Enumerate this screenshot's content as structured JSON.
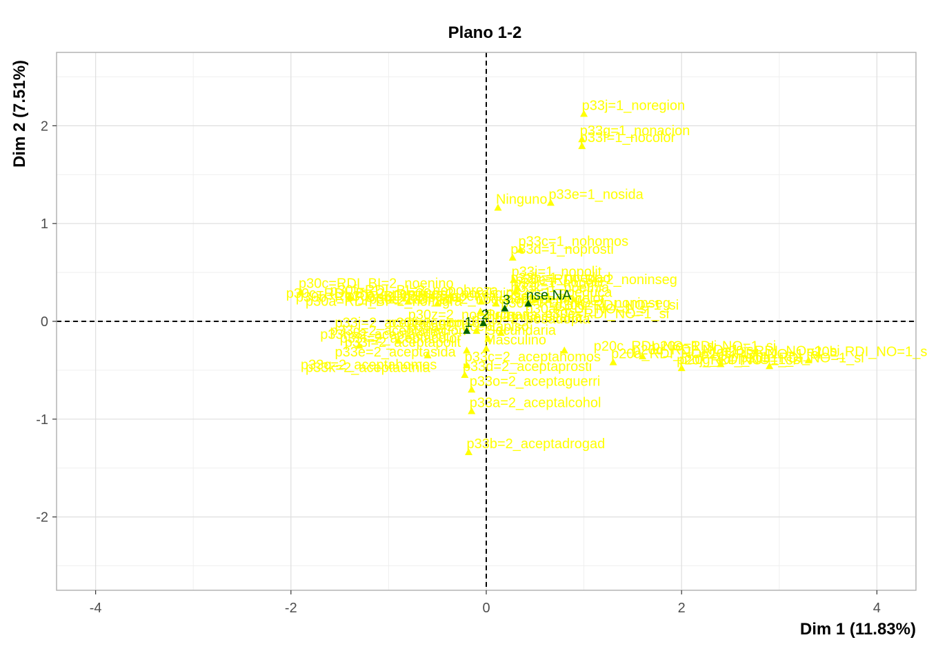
{
  "chart_data": {
    "type": "scatter",
    "title": "Plano 1-2",
    "xlabel": "Dim 1 (11.83%)",
    "ylabel": "Dim 2 (7.51%)",
    "xlim": [
      -4.4,
      4.4
    ],
    "ylim": [
      -2.75,
      2.75
    ],
    "x_ticks": [
      -4,
      -2,
      0,
      2,
      4
    ],
    "y_ticks": [
      -2,
      -1,
      0,
      1,
      2
    ],
    "x_tick_labels": [
      "-4",
      "-2",
      "0",
      "2",
      "4"
    ],
    "y_tick_labels": [
      "-2",
      "-1",
      "0",
      "1",
      "2"
    ],
    "grid": true,
    "reference_lines": [
      0,
      0
    ],
    "colors": {
      "yellow": "#ffff00",
      "green": "#006400",
      "panel_border": "#b3b3b3",
      "grid_major": "#dedede",
      "grid_minor": "#efefef"
    },
    "series": [
      {
        "color": "yellow",
        "points": [
          {
            "label": "p33j=1_noregion",
            "x": 1.0,
            "y": 2.12
          },
          {
            "label": "p33g=1_nonacion",
            "x": 0.98,
            "y": 1.86
          },
          {
            "label": "p33f=1_nocolor",
            "x": 0.98,
            "y": 1.79
          },
          {
            "label": "Ninguno",
            "x": 0.12,
            "y": 1.16
          },
          {
            "label": "p33e=1_nosida",
            "x": 0.66,
            "y": 1.21
          },
          {
            "label": "p33c=1_nohomos",
            "x": 0.35,
            "y": 0.73
          },
          {
            "label": "p33d=1_noprosti",
            "x": 0.27,
            "y": 0.65
          },
          {
            "label": "p33i=1_nopolit",
            "x": 0.28,
            "y": 0.42
          },
          {
            "label": "p30c=RDI_BI=2_noninseg",
            "x": 0.32,
            "y": 0.34
          },
          {
            "label": "p30c=RDI_BI=2_noenino",
            "x": -1.9,
            "y": 0.3
          },
          {
            "label": "p33a=2_aceptalcohol",
            "x": -0.15,
            "y": -0.92
          },
          {
            "label": "p33b=2_aceptadrogad",
            "x": -0.18,
            "y": -1.34
          },
          {
            "label": "p33o=2_aceptaguerri",
            "x": -0.15,
            "y": -0.7
          },
          {
            "label": "p33d=2_aceptaprosti",
            "x": -0.22,
            "y": -0.55
          },
          {
            "label": "p33c=2_aceptahomos",
            "x": -0.2,
            "y": -0.45
          },
          {
            "label": "Secundaria",
            "x": 0.02,
            "y": -0.18
          },
          {
            "label": "Masculino",
            "x": 0.0,
            "y": -0.28
          },
          {
            "label": "p20a_RDI_NO=1_si",
            "x": 1.3,
            "y": -0.42
          },
          {
            "label": "p20g_RDI_NO=1_si",
            "x": 2.0,
            "y": -0.48
          },
          {
            "label": "p20b_RDI_NO=1_si",
            "x": 3.3,
            "y": -0.4
          },
          {
            "label": "",
            "x": 0.1,
            "y": 0.18
          },
          {
            "label": "",
            "x": 0.3,
            "y": 0.3
          },
          {
            "label": "",
            "x": -0.06,
            "y": 0.1
          },
          {
            "label": "",
            "x": -0.1,
            "y": -0.1
          },
          {
            "label": "",
            "x": -0.05,
            "y": 0.2
          },
          {
            "label": "",
            "x": 0.15,
            "y": -0.12
          },
          {
            "label": "",
            "x": -0.2,
            "y": -0.3
          },
          {
            "label": "",
            "x": 0.5,
            "y": 0.22
          },
          {
            "label": "",
            "x": 0.8,
            "y": -0.3
          },
          {
            "label": "",
            "x": 1.6,
            "y": -0.36
          },
          {
            "label": "",
            "x": 2.4,
            "y": -0.44
          },
          {
            "label": "",
            "x": 2.9,
            "y": -0.46
          },
          {
            "label": "",
            "x": -0.8,
            "y": 0.2
          },
          {
            "label": "",
            "x": -1.4,
            "y": 0.25
          },
          {
            "label": "",
            "x": -0.5,
            "y": 0.18
          },
          {
            "label": "",
            "x": -0.9,
            "y": -0.2
          },
          {
            "label": "",
            "x": -1.3,
            "y": -0.25
          },
          {
            "label": "",
            "x": -0.6,
            "y": -0.35
          }
        ]
      },
      {
        "color": "green",
        "points": [
          {
            "label": "1",
            "x": -0.2,
            "y": -0.1
          },
          {
            "label": "2",
            "x": -0.03,
            "y": -0.02
          },
          {
            "label": "3",
            "x": 0.19,
            "y": 0.13
          },
          {
            "label": "nse.NA",
            "x": 0.43,
            "y": 0.18
          }
        ]
      }
    ],
    "clutter_labels": [
      {
        "text": "p30c=RDI_BI=2_noninseg",
        "x": -2.05,
        "y": 0.24
      },
      {
        "text": "p30b=RDI_BI=2_nodiscap",
        "x": -1.95,
        "y": 0.2
      },
      {
        "text": "p30a=RDI_BI=2_nomigra",
        "x": -1.85,
        "y": 0.16
      },
      {
        "text": "p30f=RDI_BI=2_nopobreza",
        "x": -1.6,
        "y": 0.27
      },
      {
        "text": "p30e=RDI_BI=2_noetnia",
        "x": -1.45,
        "y": 0.21
      },
      {
        "text": "p30d=RDI_BI=2_nogenero",
        "x": -1.2,
        "y": 0.18
      },
      {
        "text": "p30c=2_noreligio",
        "x": -0.8,
        "y": 0.24
      },
      {
        "text": "p33h=2_aceptaedad",
        "x": -1.7,
        "y": -0.18
      },
      {
        "text": "p33g=2_aceptanacion",
        "x": -1.6,
        "y": -0.14
      },
      {
        "text": "p33f=2_aceptacolor",
        "x": -1.5,
        "y": -0.22
      },
      {
        "text": "p33j=2_aceptaregion",
        "x": -1.55,
        "y": -0.06
      },
      {
        "text": "p33i=2_aceptapolit",
        "x": -1.45,
        "y": -0.26
      },
      {
        "text": "p33e=2_aceptasida",
        "x": -1.55,
        "y": -0.36
      },
      {
        "text": "p30a=2_aceptapiso",
        "x": -0.8,
        "y": -0.1
      },
      {
        "text": "p30f=2_nopiso",
        "x": -1.0,
        "y": -0.06
      },
      {
        "text": "p33c=2_aceptahomos",
        "x": -1.9,
        "y": -0.49
      },
      {
        "text": "p33k=2_aceptaetnia",
        "x": -1.85,
        "y": -0.52
      },
      {
        "text": "p30z=2_noeduca",
        "x": -0.8,
        "y": 0.02
      },
      {
        "text": "p30b=2_posadopta",
        "x": -0.15,
        "y": -0.02
      },
      {
        "text": "Primaria",
        "x": 0.0,
        "y": 0.02
      },
      {
        "text": "Universitaria",
        "x": 0.2,
        "y": 0.0
      },
      {
        "text": "p33h=1_noedad",
        "x": 0.25,
        "y": 0.4
      },
      {
        "text": "p33k=1_noetnia",
        "x": 0.25,
        "y": 0.3
      },
      {
        "text": "p32z=1_noeduca",
        "x": 0.2,
        "y": 0.25
      },
      {
        "text": "p32a=1_nocolor",
        "x": 0.2,
        "y": 0.19
      },
      {
        "text": "p30c=RDI_NO=1_noninseg",
        "x": 0.15,
        "y": 0.14
      },
      {
        "text": "p30d=RDI_NO=1_si",
        "x": 0.7,
        "y": 0.12
      },
      {
        "text": "p30a=RDI_NO=1_si",
        "x": 0.4,
        "y": 0.08
      },
      {
        "text": "Femenino",
        "x": 0.35,
        "y": 0.18
      },
      {
        "text": "p33i=1_nopolit",
        "x": 0.28,
        "y": 0.35
      },
      {
        "text": "p30e=RDI_NO=1_si",
        "x": 0.6,
        "y": 0.03
      },
      {
        "text": "p20c_RDI_NO=1_si",
        "x": 1.1,
        "y": -0.3
      },
      {
        "text": "p20d_RDI_NO=1_si",
        "x": 1.5,
        "y": -0.34
      },
      {
        "text": "p20e_RDI_NO=1_si",
        "x": 1.7,
        "y": -0.3
      },
      {
        "text": "p20f_RDI_NO=1_si",
        "x": 2.2,
        "y": -0.38
      },
      {
        "text": "p20h_RDI_NO=1_si",
        "x": 2.6,
        "y": -0.42
      },
      {
        "text": "p20i_RDI_NO=1_si",
        "x": 2.4,
        "y": -0.35
      },
      {
        "text": "p20j_RDI_NO=1_si",
        "x": 1.95,
        "y": -0.44
      }
    ]
  }
}
